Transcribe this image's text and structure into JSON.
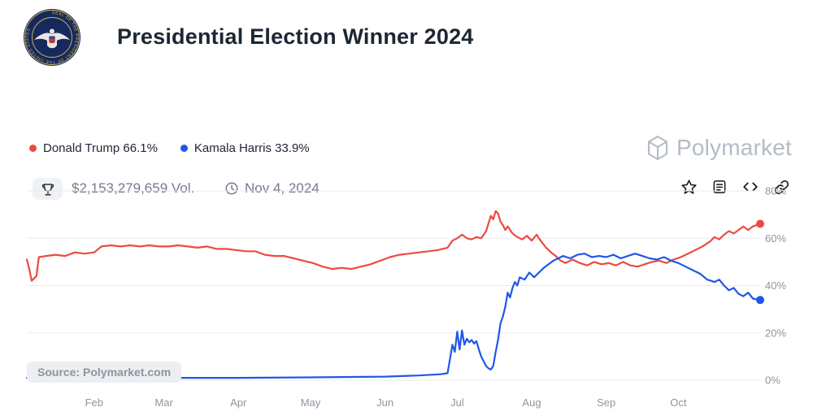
{
  "header": {
    "title": "Presidential Election Winner 2024",
    "volume": "$2,153,279,659 Vol.",
    "date": "Nov 4, 2024",
    "action_icons": [
      "bookmark-star",
      "news-article",
      "embed-code",
      "copy-link"
    ]
  },
  "legend": [
    {
      "label": "Donald Trump 66.1%",
      "color": "#ea4c3f"
    },
    {
      "label": "Kamala Harris 33.9%",
      "color": "#2057e8"
    }
  ],
  "watermark": {
    "text": "Polymarket"
  },
  "chart_data": {
    "type": "line",
    "title": "Presidential Election Winner 2024",
    "source_label": "Source: Polymarket.com",
    "x_unit": "date",
    "x_range": [
      "2024-01-04",
      "2024-11-04"
    ],
    "ylim": [
      0,
      80
    ],
    "grid": true,
    "legend_position": "top-left",
    "style": {
      "grid_color": "#e8eaee",
      "axis_label_color": "#8d95a0",
      "line_width": 2.2
    },
    "y_ticks": [
      {
        "label": "0%",
        "value": 0
      },
      {
        "label": "20%",
        "value": 20
      },
      {
        "label": "40%",
        "value": 40
      },
      {
        "label": "60%",
        "value": 60
      },
      {
        "label": "80%",
        "value": 80
      }
    ],
    "x_ticks": [
      {
        "label": "Feb",
        "date": "2024-02-01"
      },
      {
        "label": "Mar",
        "date": "2024-03-01"
      },
      {
        "label": "Apr",
        "date": "2024-04-01"
      },
      {
        "label": "May",
        "date": "2024-05-01"
      },
      {
        "label": "Jun",
        "date": "2024-06-01"
      },
      {
        "label": "Jul",
        "date": "2024-07-01"
      },
      {
        "label": "Aug",
        "date": "2024-08-01"
      },
      {
        "label": "Sep",
        "date": "2024-09-01"
      },
      {
        "label": "Oct",
        "date": "2024-10-01"
      }
    ],
    "series": [
      {
        "name": "Donald Trump",
        "final_value": 66.1,
        "color": "#ea4c3f",
        "points": [
          [
            "2024-01-04",
            51
          ],
          [
            "2024-01-05",
            47
          ],
          [
            "2024-01-06",
            42
          ],
          [
            "2024-01-08",
            44
          ],
          [
            "2024-01-09",
            52
          ],
          [
            "2024-01-12",
            52.5
          ],
          [
            "2024-01-16",
            53
          ],
          [
            "2024-01-20",
            52.5
          ],
          [
            "2024-01-24",
            54
          ],
          [
            "2024-01-28",
            53.5
          ],
          [
            "2024-02-01",
            54
          ],
          [
            "2024-02-04",
            56.5
          ],
          [
            "2024-02-08",
            57
          ],
          [
            "2024-02-12",
            56.5
          ],
          [
            "2024-02-16",
            57
          ],
          [
            "2024-02-20",
            56.5
          ],
          [
            "2024-02-24",
            57
          ],
          [
            "2024-02-28",
            56.5
          ],
          [
            "2024-03-03",
            56.5
          ],
          [
            "2024-03-07",
            57
          ],
          [
            "2024-03-11",
            56.5
          ],
          [
            "2024-03-15",
            56
          ],
          [
            "2024-03-19",
            56.5
          ],
          [
            "2024-03-23",
            55.5
          ],
          [
            "2024-03-27",
            55.5
          ],
          [
            "2024-03-31",
            55
          ],
          [
            "2024-04-04",
            54.5
          ],
          [
            "2024-04-08",
            54.5
          ],
          [
            "2024-04-12",
            53
          ],
          [
            "2024-04-16",
            52.5
          ],
          [
            "2024-04-20",
            52.5
          ],
          [
            "2024-04-24",
            51.5
          ],
          [
            "2024-04-28",
            50.5
          ],
          [
            "2024-05-02",
            49.5
          ],
          [
            "2024-05-06",
            48
          ],
          [
            "2024-05-10",
            47
          ],
          [
            "2024-05-14",
            47.5
          ],
          [
            "2024-05-18",
            47
          ],
          [
            "2024-05-22",
            48
          ],
          [
            "2024-05-26",
            49
          ],
          [
            "2024-05-30",
            50.5
          ],
          [
            "2024-06-03",
            52
          ],
          [
            "2024-06-07",
            53
          ],
          [
            "2024-06-11",
            53.5
          ],
          [
            "2024-06-15",
            54
          ],
          [
            "2024-06-19",
            54.5
          ],
          [
            "2024-06-23",
            55
          ],
          [
            "2024-06-27",
            56
          ],
          [
            "2024-06-29",
            59
          ],
          [
            "2024-07-01",
            60
          ],
          [
            "2024-07-03",
            61.5
          ],
          [
            "2024-07-05",
            60
          ],
          [
            "2024-07-07",
            59.5
          ],
          [
            "2024-07-09",
            60.5
          ],
          [
            "2024-07-11",
            60
          ],
          [
            "2024-07-13",
            63
          ],
          [
            "2024-07-15",
            69.5
          ],
          [
            "2024-07-16",
            68
          ],
          [
            "2024-07-17",
            71.5
          ],
          [
            "2024-07-18",
            70.5
          ],
          [
            "2024-07-19",
            67
          ],
          [
            "2024-07-20",
            65.5
          ],
          [
            "2024-07-21",
            63.5
          ],
          [
            "2024-07-22",
            65
          ],
          [
            "2024-07-24",
            62
          ],
          [
            "2024-07-26",
            60.5
          ],
          [
            "2024-07-28",
            59.5
          ],
          [
            "2024-07-30",
            61
          ],
          [
            "2024-08-01",
            59
          ],
          [
            "2024-08-03",
            61.5
          ],
          [
            "2024-08-05",
            58.5
          ],
          [
            "2024-08-07",
            56
          ],
          [
            "2024-08-09",
            54
          ],
          [
            "2024-08-11",
            52.5
          ],
          [
            "2024-08-13",
            50.5
          ],
          [
            "2024-08-15",
            49.5
          ],
          [
            "2024-08-18",
            51
          ],
          [
            "2024-08-21",
            49.5
          ],
          [
            "2024-08-24",
            48.5
          ],
          [
            "2024-08-27",
            50
          ],
          [
            "2024-08-30",
            49
          ],
          [
            "2024-09-02",
            49.5
          ],
          [
            "2024-09-05",
            48.5
          ],
          [
            "2024-09-08",
            50
          ],
          [
            "2024-09-11",
            48.5
          ],
          [
            "2024-09-14",
            48
          ],
          [
            "2024-09-17",
            49
          ],
          [
            "2024-09-20",
            50
          ],
          [
            "2024-09-23",
            50.5
          ],
          [
            "2024-09-26",
            49.5
          ],
          [
            "2024-09-29",
            51
          ],
          [
            "2024-10-02",
            52
          ],
          [
            "2024-10-05",
            53.5
          ],
          [
            "2024-10-08",
            55
          ],
          [
            "2024-10-11",
            56.5
          ],
          [
            "2024-10-14",
            58.5
          ],
          [
            "2024-10-16",
            60.5
          ],
          [
            "2024-10-18",
            59.5
          ],
          [
            "2024-10-20",
            61.5
          ],
          [
            "2024-10-22",
            63
          ],
          [
            "2024-10-24",
            62
          ],
          [
            "2024-10-26",
            63.5
          ],
          [
            "2024-10-28",
            65
          ],
          [
            "2024-10-30",
            63.5
          ],
          [
            "2024-11-01",
            65
          ],
          [
            "2024-11-04",
            66.1
          ]
        ]
      },
      {
        "name": "Kamala Harris",
        "final_value": 33.9,
        "color": "#2057e8",
        "points": [
          [
            "2024-01-04",
            1
          ],
          [
            "2024-02-01",
            1
          ],
          [
            "2024-03-01",
            1
          ],
          [
            "2024-04-01",
            1
          ],
          [
            "2024-05-01",
            1.2
          ],
          [
            "2024-06-01",
            1.5
          ],
          [
            "2024-06-15",
            2
          ],
          [
            "2024-06-24",
            2.5
          ],
          [
            "2024-06-27",
            3
          ],
          [
            "2024-06-28",
            9
          ],
          [
            "2024-06-29",
            15
          ],
          [
            "2024-06-30",
            12
          ],
          [
            "2024-07-01",
            20.5
          ],
          [
            "2024-07-02",
            13
          ],
          [
            "2024-07-03",
            21
          ],
          [
            "2024-07-04",
            15
          ],
          [
            "2024-07-05",
            17.5
          ],
          [
            "2024-07-06",
            16
          ],
          [
            "2024-07-07",
            17
          ],
          [
            "2024-07-08",
            15.5
          ],
          [
            "2024-07-09",
            16.5
          ],
          [
            "2024-07-10",
            13
          ],
          [
            "2024-07-11",
            10
          ],
          [
            "2024-07-12",
            8
          ],
          [
            "2024-07-13",
            6
          ],
          [
            "2024-07-14",
            5
          ],
          [
            "2024-07-15",
            4.5
          ],
          [
            "2024-07-16",
            6
          ],
          [
            "2024-07-17",
            12
          ],
          [
            "2024-07-18",
            17
          ],
          [
            "2024-07-19",
            24
          ],
          [
            "2024-07-20",
            27
          ],
          [
            "2024-07-21",
            31
          ],
          [
            "2024-07-22",
            37
          ],
          [
            "2024-07-23",
            35
          ],
          [
            "2024-07-24",
            39
          ],
          [
            "2024-07-25",
            41.5
          ],
          [
            "2024-07-26",
            40
          ],
          [
            "2024-07-27",
            43.5
          ],
          [
            "2024-07-29",
            42.5
          ],
          [
            "2024-07-31",
            45.5
          ],
          [
            "2024-08-02",
            43.5
          ],
          [
            "2024-08-04",
            45.5
          ],
          [
            "2024-08-06",
            47.5
          ],
          [
            "2024-08-08",
            49
          ],
          [
            "2024-08-10",
            50.5
          ],
          [
            "2024-08-12",
            51.5
          ],
          [
            "2024-08-14",
            52.5
          ],
          [
            "2024-08-17",
            51.5
          ],
          [
            "2024-08-20",
            53
          ],
          [
            "2024-08-23",
            53.5
          ],
          [
            "2024-08-26",
            52
          ],
          [
            "2024-08-29",
            52.5
          ],
          [
            "2024-09-01",
            52
          ],
          [
            "2024-09-04",
            53
          ],
          [
            "2024-09-07",
            51.5
          ],
          [
            "2024-09-10",
            52.5
          ],
          [
            "2024-09-13",
            53.5
          ],
          [
            "2024-09-16",
            52.5
          ],
          [
            "2024-09-19",
            51.5
          ],
          [
            "2024-09-22",
            51
          ],
          [
            "2024-09-25",
            52
          ],
          [
            "2024-09-28",
            50.5
          ],
          [
            "2024-10-01",
            49.5
          ],
          [
            "2024-10-04",
            48
          ],
          [
            "2024-10-07",
            46.5
          ],
          [
            "2024-10-10",
            45
          ],
          [
            "2024-10-13",
            42.5
          ],
          [
            "2024-10-16",
            41.5
          ],
          [
            "2024-10-18",
            42.5
          ],
          [
            "2024-10-20",
            40
          ],
          [
            "2024-10-22",
            38
          ],
          [
            "2024-10-24",
            39
          ],
          [
            "2024-10-26",
            36.5
          ],
          [
            "2024-10-28",
            35.5
          ],
          [
            "2024-10-30",
            37
          ],
          [
            "2024-11-01",
            34.5
          ],
          [
            "2024-11-04",
            33.9
          ]
        ]
      }
    ]
  }
}
